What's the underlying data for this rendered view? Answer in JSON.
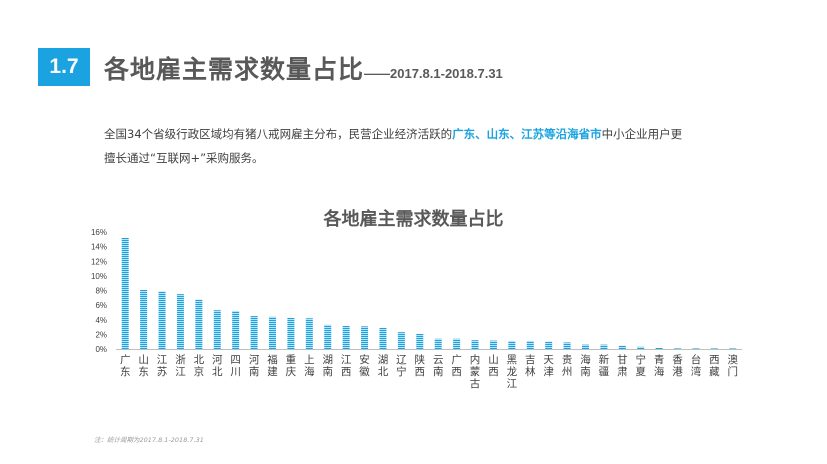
{
  "header": {
    "section_number": "1.7",
    "title": "各地雇主需求数量占比",
    "subtitle": "——2017.8.1-2018.7.31"
  },
  "description": {
    "text_before": "全国34个省级行政区域均有猪八戒网雇主分布，民营企业经济活跃的",
    "highlight": "广东、山东、江苏等沿海省市",
    "text_after": "中小企业用户更擅长通过“互联网+”采购服务。"
  },
  "source_note": "注：统计周期为2017.8.1-2018.7.31",
  "colors": {
    "accent": "#1aa3e0",
    "bar": "#1aa3e0",
    "title": "#595959"
  },
  "chart_data": {
    "type": "bar",
    "title": "各地雇主需求数量占比",
    "xlabel": "",
    "ylabel": "",
    "ylim": [
      0,
      16
    ],
    "y_ticks": [
      "0%",
      "2%",
      "4%",
      "6%",
      "8%",
      "10%",
      "12%",
      "14%",
      "16%"
    ],
    "y_unit": "%",
    "grid": false,
    "categories": [
      "广东",
      "山东",
      "江苏",
      "浙江",
      "北京",
      "河北",
      "四川",
      "河南",
      "福建",
      "重庆",
      "上海",
      "湖南",
      "江西",
      "安徽",
      "湖北",
      "辽宁",
      "陕西",
      "云南",
      "广西",
      "内蒙古",
      "山西",
      "黑龙江",
      "吉林",
      "天津",
      "贵州",
      "海南",
      "新疆",
      "甘肃",
      "宁夏",
      "青海",
      "香港",
      "台湾",
      "西藏",
      "澳门"
    ],
    "values": [
      15.2,
      8.1,
      7.9,
      7.5,
      6.8,
      5.3,
      5.2,
      4.5,
      4.4,
      4.3,
      4.2,
      3.3,
      3.2,
      3.1,
      2.9,
      2.3,
      2.1,
      1.4,
      1.4,
      1.2,
      1.15,
      1.1,
      1.1,
      1.05,
      0.9,
      0.6,
      0.6,
      0.5,
      0.3,
      0.2,
      0.02,
      0.02,
      0.02,
      0.01
    ]
  }
}
